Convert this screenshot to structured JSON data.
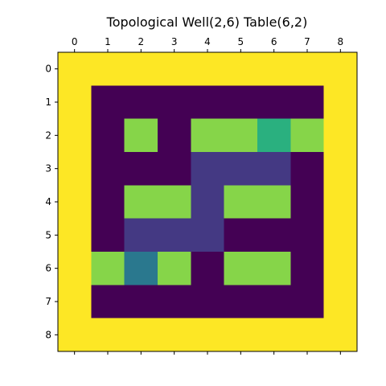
{
  "chart_data": {
    "type": "heatmap",
    "title": "Topological Well(2,6) Table(6,2)",
    "x_ticks": [
      "0",
      "1",
      "2",
      "3",
      "4",
      "5",
      "6",
      "7",
      "8"
    ],
    "y_ticks": [
      "0",
      "1",
      "2",
      "3",
      "4",
      "5",
      "6",
      "7",
      "8"
    ],
    "xlabel": "",
    "ylabel": "",
    "colormap": "viridis",
    "x_axis_position": "top",
    "grid": false,
    "values": [
      [
        1.0,
        1.0,
        1.0,
        1.0,
        1.0,
        1.0,
        1.0,
        1.0,
        1.0
      ],
      [
        1.0,
        0.0,
        0.0,
        0.0,
        0.0,
        0.0,
        0.0,
        0.0,
        1.0
      ],
      [
        1.0,
        0.0,
        0.8,
        0.0,
        0.8,
        0.8,
        0.6,
        0.8,
        1.0
      ],
      [
        1.0,
        0.0,
        0.0,
        0.0,
        0.2,
        0.2,
        0.2,
        0.0,
        1.0
      ],
      [
        1.0,
        0.0,
        0.8,
        0.8,
        0.2,
        0.8,
        0.8,
        0.0,
        1.0
      ],
      [
        1.0,
        0.0,
        0.2,
        0.2,
        0.2,
        0.0,
        0.0,
        0.0,
        1.0
      ],
      [
        1.0,
        0.8,
        0.4,
        0.8,
        0.0,
        0.8,
        0.8,
        0.0,
        1.0
      ],
      [
        1.0,
        0.0,
        0.0,
        0.0,
        0.0,
        0.0,
        0.0,
        0.0,
        1.0
      ],
      [
        1.0,
        1.0,
        1.0,
        1.0,
        1.0,
        1.0,
        1.0,
        1.0,
        1.0
      ]
    ],
    "color_stops": {
      "0.0": "#440154",
      "0.2": "#443983",
      "0.4": "#2a788e",
      "0.6": "#2ab07f",
      "0.8": "#86d549",
      "1.0": "#fde725"
    }
  }
}
